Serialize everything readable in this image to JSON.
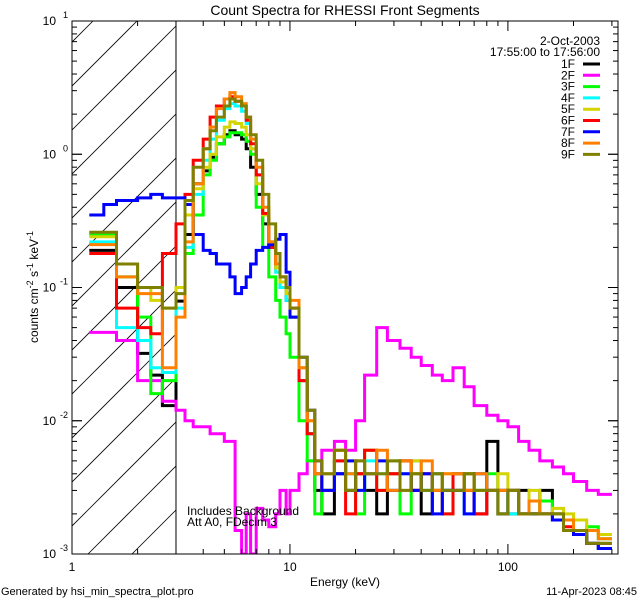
{
  "chart_data": {
    "type": "line",
    "title": "Count Spectra for RHESSI Front Segments",
    "xlabel": "Energy (keV)",
    "ylabel": "counts cm-2 s-1 keV-1",
    "ylabel_parts": [
      "counts cm",
      "-2",
      " s",
      "-1",
      " keV",
      "-1"
    ],
    "xscale": "log",
    "yscale": "log",
    "xlim": [
      1,
      320
    ],
    "ylim": [
      0.001,
      10
    ],
    "x_ticks": [
      {
        "v": 1,
        "label": "1"
      },
      {
        "v": 10,
        "label": "10"
      },
      {
        "v": 100,
        "label": "100"
      }
    ],
    "y_ticks": [
      {
        "v": 0.001,
        "base": "10",
        "exp": "-3"
      },
      {
        "v": 0.01,
        "base": "10",
        "exp": "-2"
      },
      {
        "v": 0.1,
        "base": "10",
        "exp": "-1"
      },
      {
        "v": 1,
        "base": "10",
        "exp": "0"
      },
      {
        "v": 10,
        "base": "10",
        "exp": "1"
      }
    ],
    "legend_placement": "top-right",
    "date": "2-Oct-2003",
    "time_range": "17:55:00 to 17:56:00",
    "annotations": [
      "Includes Background",
      "Att A0, FDecim 3"
    ],
    "excluded_region_keV": [
      1,
      3
    ],
    "bin_edges": [
      1.2,
      1.4,
      1.6,
      2.0,
      2.3,
      2.6,
      3.0,
      3.3,
      3.6,
      4.0,
      4.3,
      4.6,
      5.0,
      5.3,
      5.6,
      6.0,
      6.3,
      6.6,
      7.0,
      7.5,
      8.0,
      8.6,
      9.0,
      9.6,
      10,
      11,
      12,
      13,
      14,
      16,
      18,
      20,
      22,
      25,
      28,
      32,
      36,
      40,
      45,
      50,
      56,
      63,
      70,
      80,
      90,
      100,
      112,
      125,
      140,
      160,
      180,
      200,
      230,
      260,
      300
    ],
    "series": [
      {
        "name": "1F",
        "color": "#000000",
        "values": [
          0.19,
          0.19,
          0.1,
          0.032,
          0.022,
          0.013,
          0.079,
          0.25,
          0.6,
          0.75,
          0.95,
          1.2,
          1.4,
          1.5,
          1.4,
          1.3,
          1.1,
          0.8,
          0.5,
          0.3,
          0.2,
          0.14,
          0.1,
          0.08,
          0.06,
          0.02,
          0.008,
          0.003,
          0.002,
          0.004,
          0.003,
          0.004,
          0.003,
          0.002,
          0.004,
          0.005,
          0.003,
          0.002,
          0.004,
          0.003,
          0.003,
          0.004,
          0.002,
          0.007,
          0.003,
          0.002,
          0.003,
          0.002,
          0.003,
          0.002,
          0.0015,
          0.0015,
          0.0012,
          0.0011
        ]
      },
      {
        "name": "2F",
        "color": "#ff00ff",
        "values": [
          0.046,
          0.046,
          0.04,
          0.02,
          0.02,
          0.014,
          0.012,
          0.01,
          0.009,
          0.009,
          0.008,
          0.008,
          0.007,
          0.007,
          0.0015,
          0.001,
          0.002,
          0.001,
          0.0022,
          0.0018,
          0.0016,
          0.002,
          0.003,
          0.002,
          0.003,
          0.004,
          0.005,
          0.004,
          0.006,
          0.007,
          0.006,
          0.01,
          0.022,
          0.05,
          0.04,
          0.035,
          0.03,
          0.026,
          0.022,
          0.02,
          0.025,
          0.018,
          0.013,
          0.011,
          0.01,
          0.009,
          0.007,
          0.006,
          0.005,
          0.0045,
          0.004,
          0.0035,
          0.003,
          0.0028
        ]
      },
      {
        "name": "3F",
        "color": "#00ff00",
        "values": [
          0.25,
          0.25,
          0.12,
          0.06,
          0.016,
          0.02,
          0.1,
          0.18,
          0.35,
          0.7,
          0.9,
          1.2,
          1.35,
          1.45,
          1.45,
          1.4,
          1.25,
          1.0,
          0.4,
          0.2,
          0.12,
          0.08,
          0.06,
          0.045,
          0.03,
          0.01,
          0.005,
          0.002,
          0.003,
          0.005,
          0.004,
          0.002,
          0.006,
          0.003,
          0.005,
          0.002,
          0.004,
          0.003,
          0.003,
          0.002,
          0.004,
          0.003,
          0.003,
          0.004,
          0.002,
          0.003,
          0.002,
          0.002,
          0.0025,
          0.002,
          0.0018,
          0.0015,
          0.0016,
          0.0013
        ]
      },
      {
        "name": "4F",
        "color": "#00ffff",
        "values": [
          0.22,
          0.22,
          0.05,
          0.04,
          0.025,
          0.023,
          0.07,
          0.2,
          0.5,
          0.9,
          1.3,
          1.8,
          2.2,
          2.4,
          2.3,
          2.1,
          1.7,
          1.1,
          0.7,
          0.35,
          0.22,
          0.13,
          0.1,
          0.08,
          0.06,
          0.02,
          0.008,
          0.004,
          0.003,
          0.005,
          0.004,
          0.003,
          0.005,
          0.004,
          0.003,
          0.004,
          0.005,
          0.003,
          0.004,
          0.003,
          0.004,
          0.002,
          0.003,
          0.003,
          0.003,
          0.002,
          0.002,
          0.002,
          0.002,
          0.0018,
          0.0015,
          0.0014,
          0.0012,
          0.0012
        ]
      },
      {
        "name": "5F",
        "color": "#d4d400",
        "values": [
          0.24,
          0.24,
          0.15,
          0.1,
          0.08,
          0.07,
          0.1,
          0.35,
          0.55,
          0.8,
          1.0,
          1.35,
          1.6,
          1.75,
          1.7,
          1.6,
          1.4,
          1.1,
          0.6,
          0.35,
          0.22,
          0.14,
          0.11,
          0.09,
          0.06,
          0.025,
          0.01,
          0.004,
          0.003,
          0.006,
          0.005,
          0.004,
          0.006,
          0.005,
          0.004,
          0.003,
          0.005,
          0.004,
          0.003,
          0.004,
          0.003,
          0.004,
          0.003,
          0.003,
          0.004,
          0.003,
          0.002,
          0.003,
          0.002,
          0.0022,
          0.002,
          0.0018,
          0.0015,
          0.0014
        ]
      },
      {
        "name": "6F",
        "color": "#ff0000",
        "values": [
          0.18,
          0.18,
          0.07,
          0.05,
          0.045,
          0.18,
          0.3,
          0.5,
          0.9,
          1.3,
          1.9,
          2.3,
          2.6,
          2.7,
          2.5,
          2.3,
          1.8,
          1.2,
          0.7,
          0.36,
          0.2,
          0.15,
          0.12,
          0.1,
          0.07,
          0.02,
          0.008,
          0.004,
          0.003,
          0.005,
          0.002,
          0.004,
          0.006,
          0.003,
          0.004,
          0.005,
          0.003,
          0.004,
          0.003,
          0.002,
          0.004,
          0.003,
          0.002,
          0.003,
          0.003,
          0.003,
          0.002,
          0.002,
          0.002,
          0.0018,
          0.0016,
          0.0014,
          0.0012,
          0.0012
        ]
      },
      {
        "name": "7F",
        "color": "#0000ff",
        "values": [
          0.35,
          0.42,
          0.45,
          0.47,
          0.5,
          0.47,
          0.47,
          0.42,
          0.25,
          0.19,
          0.18,
          0.15,
          0.15,
          0.12,
          0.09,
          0.1,
          0.12,
          0.15,
          0.19,
          0.2,
          0.21,
          0.23,
          0.25,
          0.13,
          0.06,
          0.03,
          0.012,
          0.005,
          0.003,
          0.004,
          0.005,
          0.003,
          0.004,
          0.005,
          0.003,
          0.004,
          0.003,
          0.004,
          0.002,
          0.003,
          0.003,
          0.002,
          0.004,
          0.003,
          0.002,
          0.003,
          0.002,
          0.002,
          0.002,
          0.0018,
          0.0015,
          0.0014,
          0.0012,
          0.0011
        ]
      },
      {
        "name": "8F",
        "color": "#ff8000",
        "values": [
          0.21,
          0.21,
          0.12,
          0.09,
          0.09,
          0.025,
          0.06,
          0.22,
          0.6,
          1.1,
          1.6,
          2.2,
          2.6,
          2.9,
          2.7,
          2.4,
          1.9,
          1.3,
          0.8,
          0.4,
          0.22,
          0.15,
          0.12,
          0.1,
          0.08,
          0.025,
          0.01,
          0.004,
          0.004,
          0.006,
          0.004,
          0.005,
          0.004,
          0.006,
          0.003,
          0.005,
          0.004,
          0.005,
          0.003,
          0.004,
          0.004,
          0.003,
          0.004,
          0.003,
          0.003,
          0.003,
          0.002,
          0.0025,
          0.002,
          0.002,
          0.0018,
          0.0015,
          0.0015,
          0.0013
        ]
      },
      {
        "name": "9F",
        "color": "#808000",
        "values": [
          0.26,
          0.26,
          0.15,
          0.1,
          0.1,
          0.07,
          0.09,
          0.45,
          0.8,
          1.1,
          1.5,
          1.9,
          2.3,
          2.6,
          2.5,
          2.3,
          1.9,
          1.4,
          0.9,
          0.5,
          0.3,
          0.18,
          0.12,
          0.1,
          0.07,
          0.03,
          0.012,
          0.005,
          0.004,
          0.006,
          0.003,
          0.005,
          0.004,
          0.004,
          0.005,
          0.003,
          0.004,
          0.003,
          0.004,
          0.003,
          0.003,
          0.004,
          0.003,
          0.003,
          0.002,
          0.003,
          0.002,
          0.002,
          0.002,
          0.002,
          0.0015,
          0.0015,
          0.0012,
          0.0012
        ]
      }
    ]
  },
  "footer": {
    "generated_by": "Generated by hsi_min_spectra_plot.pro",
    "timestamp": "11-Apr-2023 08:45"
  }
}
